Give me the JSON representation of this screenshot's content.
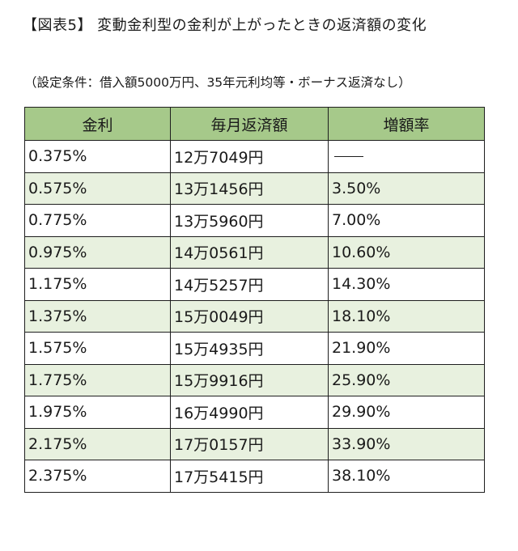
{
  "title": "【図表5】 変動金利型の金利が上がったときの返済額の変化",
  "subtitle": "（設定条件：借入額5000万円、35年元利均等・ボーナス返済なし）",
  "table": {
    "headers": [
      "金利",
      "毎月返済額",
      "増額率"
    ],
    "rows": [
      [
        "0.375%",
        "12万7049円",
        "——"
      ],
      [
        "0.575%",
        "13万1456円",
        "3.50%"
      ],
      [
        "0.775%",
        "13万5960円",
        "7.00%"
      ],
      [
        "0.975%",
        "14万0561円",
        "10.60%"
      ],
      [
        "1.175%",
        "14万5257円",
        "14.30%"
      ],
      [
        "1.375%",
        "15万0049円",
        "18.10%"
      ],
      [
        "1.575%",
        "15万4935円",
        "21.90%"
      ],
      [
        "1.775%",
        "15万9916円",
        "25.90%"
      ],
      [
        "1.975%",
        "16万4990円",
        "29.90%"
      ],
      [
        "2.175%",
        "17万0157円",
        "33.90%"
      ],
      [
        "2.375%",
        "17万5415円",
        "38.10%"
      ]
    ]
  },
  "colors": {
    "header_bg": "#a6c98a",
    "stripe_bg": "#e8f1df",
    "border": "#1e1e1e"
  }
}
